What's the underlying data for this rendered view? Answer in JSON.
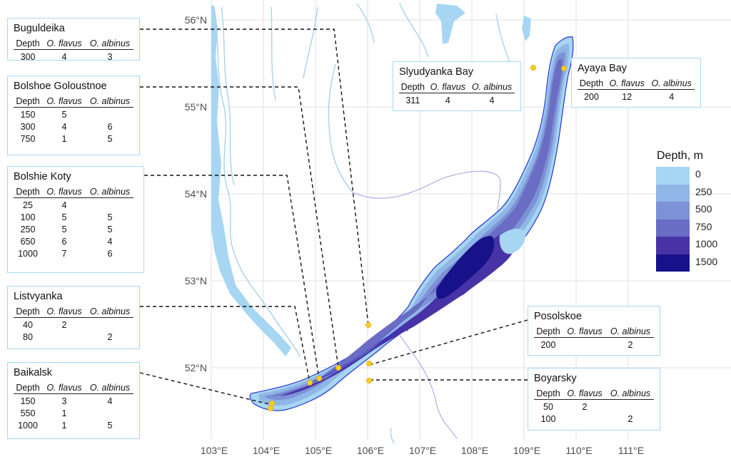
{
  "map": {
    "lat_ticks": [
      "56°N",
      "55°N",
      "54°N",
      "53°N",
      "52°N"
    ],
    "lon_ticks": [
      "103°E",
      "104°E",
      "105°E",
      "106°E",
      "107°E",
      "108°E",
      "109°E",
      "110°E",
      "111°E"
    ],
    "colors": {
      "lake_0": "#a6d6f2",
      "lake_250": "#8fb6e6",
      "lake_500": "#7d92d6",
      "lake_750": "#6b6cc4",
      "lake_1000": "#4733a6",
      "lake_1500": "#17118a",
      "shore": "#2a35cf",
      "site": "#f7d117"
    }
  },
  "legend": {
    "title": "Depth, m",
    "items": [
      {
        "label": "0",
        "color": "#a6d6f2"
      },
      {
        "label": "250",
        "color": "#8fb6e6"
      },
      {
        "label": "500",
        "color": "#7d92d6"
      },
      {
        "label": "750",
        "color": "#6b6cc4"
      },
      {
        "label": "1000",
        "color": "#4733a6"
      },
      {
        "label": "1500",
        "color": "#17118a"
      }
    ]
  },
  "header": {
    "depth": "Depth",
    "flavus": "O. flavus",
    "albinus": "O. albinus"
  },
  "sites": [
    {
      "name": "Buguldeika",
      "rows": [
        [
          "300",
          "4",
          "3"
        ]
      ]
    },
    {
      "name": "Bolshoe Goloustnoe",
      "rows": [
        [
          "150",
          "5",
          ""
        ],
        [
          "300",
          "4",
          "6"
        ],
        [
          "750",
          "1",
          "5"
        ]
      ]
    },
    {
      "name": "Bolshie Koty",
      "rows": [
        [
          "25",
          "4",
          ""
        ],
        [
          "100",
          "5",
          "5"
        ],
        [
          "250",
          "5",
          "5"
        ],
        [
          "650",
          "6",
          "4"
        ],
        [
          "1000",
          "7",
          "6"
        ]
      ]
    },
    {
      "name": "Listvyanka",
      "rows": [
        [
          "40",
          "2",
          ""
        ],
        [
          "80",
          "",
          "2"
        ]
      ]
    },
    {
      "name": "Baikalsk",
      "rows": [
        [
          "150",
          "3",
          "4"
        ],
        [
          "550",
          "1",
          ""
        ],
        [
          "1000",
          "1",
          "5"
        ]
      ]
    },
    {
      "name": "Slyudyanka Bay",
      "rows": [
        [
          "311",
          "4",
          "4"
        ]
      ]
    },
    {
      "name": "Ayaya Bay",
      "rows": [
        [
          "200",
          "12",
          "4"
        ]
      ]
    },
    {
      "name": "Posolskoe",
      "rows": [
        [
          "200",
          "",
          "2"
        ]
      ]
    },
    {
      "name": "Boyarsky",
      "rows": [
        [
          "50",
          "2",
          ""
        ],
        [
          "100",
          "",
          "2"
        ]
      ]
    }
  ]
}
